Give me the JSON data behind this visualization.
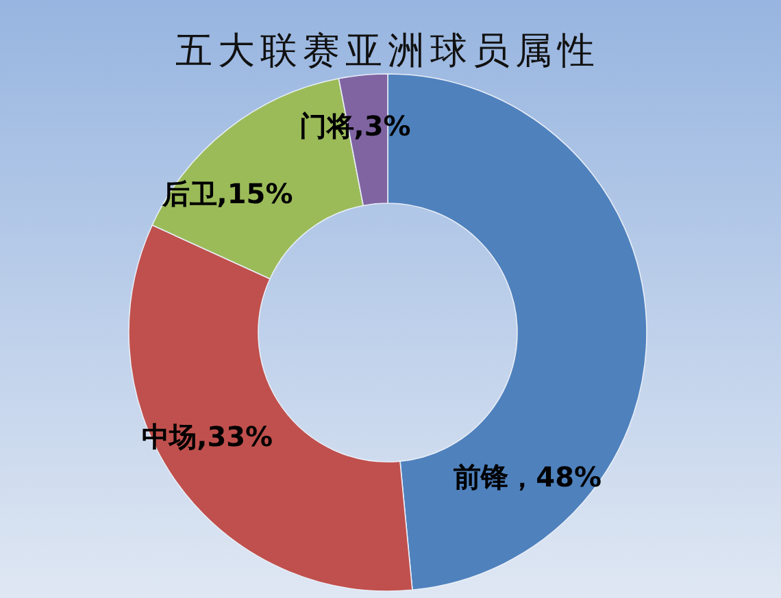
{
  "chart_data": {
    "type": "donut",
    "title": "五大联赛亚洲球员属性",
    "categories": [
      "前锋",
      "中场",
      "后卫",
      "门将"
    ],
    "values": [
      48,
      33,
      15,
      3
    ],
    "colors": [
      "#4f81bd",
      "#c0504d",
      "#9bbb59",
      "#8064a2"
    ],
    "value_labels": [
      "，48%",
      ",33%",
      ",15%",
      ",3%"
    ]
  }
}
